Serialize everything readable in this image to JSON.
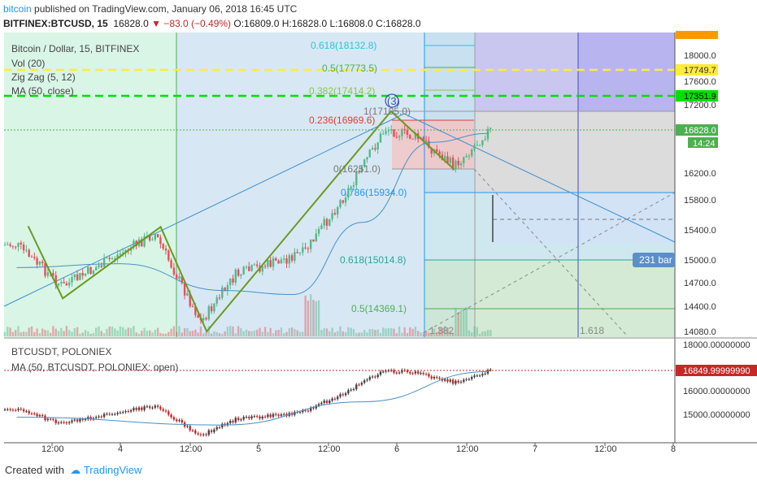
{
  "header": {
    "brand": "bitcoin",
    "published_text": " published on TradingView.com, January 06, 2018 16:45 UTC",
    "symbol": "BITFINEX:BTCUSD, 15",
    "last": "16828.0",
    "change": "▼ −83.0 (−0.49%)",
    "ohlc": "O:16809.0 H:16828.0 L:16808.0 C:16828.0"
  },
  "main_legend": {
    "title": "Bitcoin / Dollar, 15, BITFINEX",
    "vol": "Vol (20)",
    "zigzag": "Zig Zag (5, 12)",
    "ma": "MA (50, close)"
  },
  "lower_legend": {
    "title": "BTCUSDT, POLONIEX",
    "ma": "MA (50, BTCUSDT, POLONIEX: open)"
  },
  "footer": {
    "created_with": "Created with",
    "tradingview": "TradingView"
  },
  "colors": {
    "up": "#53b987",
    "down": "#eb4d5c",
    "zigzag": "#6a9a1f",
    "ma": "#4a90c8",
    "yellow_line": "#ffeb3b",
    "green_line": "#00e000"
  },
  "chart_data": [
    {
      "type": "line",
      "title": "Bitcoin / Dollar, 15, BITFINEX",
      "subtitle": "BITFINEX:BTCUSD, 15",
      "x_ticks": [
        "12:00",
        "4",
        "12:00",
        "5",
        "12:00",
        "6",
        "12:00",
        "7",
        "12:00",
        "8"
      ],
      "y_ticks": [
        18000,
        17600,
        17200,
        16200,
        15800,
        15400,
        15000,
        14700,
        14400,
        14080
      ],
      "ylim": [
        14000,
        18400
      ],
      "series": [
        {
          "name": "Zig Zag (5, 12)",
          "x": [
            "Jan 3 08:00",
            "Jan 3 14:00",
            "Jan 4 07:00",
            "Jan 4 15:00",
            "Jan 5 23:00",
            "Jan 6 10:00"
          ],
          "values": [
            15450,
            14500,
            15440,
            14080,
            17105,
            16251
          ]
        },
        {
          "name": "MA (50, close)",
          "x": [
            "Jan 3 06:00",
            "Jan 4 00:00",
            "Jan 4 18:00",
            "Jan 5 06:00",
            "Jan 5 18:00",
            "Jan 6 06:00",
            "Jan 6 16:00"
          ],
          "values": [
            14900,
            14950,
            14600,
            14550,
            15500,
            16650,
            16780
          ]
        },
        {
          "name": "BTCUSD close",
          "x": [
            "Jan 3 06:00",
            "Jan 3 14:00",
            "Jan 4 06:00",
            "Jan 4 14:00",
            "Jan 4 20:00",
            "Jan 5 08:00",
            "Jan 5 16:00",
            "Jan 5 22:00",
            "Jan 6 04:00",
            "Jan 6 10:00",
            "Jan 6 16:00"
          ],
          "values": [
            15200,
            14650,
            15350,
            14200,
            14800,
            15100,
            16000,
            16850,
            16700,
            16300,
            16828
          ]
        }
      ],
      "fib_retracement": [
        {
          "label": "1(17105.0)",
          "value": 17105.0
        },
        {
          "label": "0.236(16969.6)",
          "value": 16969.6
        },
        {
          "label": "0(16251.0)",
          "value": 16251.0
        }
      ],
      "fib_extension": [
        {
          "label": "0.618(18132.8)",
          "value": 18132.8
        },
        {
          "label": "0.5(17773.5)",
          "value": 17773.5
        },
        {
          "label": "0.382(17414.2)",
          "value": 17414.2
        },
        {
          "label": "0.786(15934.0)",
          "value": 15934.0
        },
        {
          "label": "0.618(15014.8)",
          "value": 15014.8
        },
        {
          "label": "0.5(14369.1)",
          "value": 14369.1
        }
      ],
      "price_tags": [
        {
          "label": "17749.7",
          "value": 17749.7,
          "color": "#ffeb3b"
        },
        {
          "label": "17351.9",
          "value": 17351.9,
          "color": "#00e000"
        },
        {
          "label": "16828.0",
          "value": 16828.0,
          "color": "#4caf50"
        },
        {
          "label": "14:24",
          "value": 16740,
          "color": "#4caf50"
        }
      ],
      "annotations": [
        "(3)",
        "231 bar",
        "1.382",
        "1.618"
      ]
    },
    {
      "type": "line",
      "title": "BTCUSDT, POLONIEX",
      "y_ticks": [
        "18000.00000000",
        "16000.00000000",
        "15000.00000000"
      ],
      "ylim": [
        14000,
        18400
      ],
      "series": [
        {
          "name": "BTCUSDT",
          "x": [
            "Jan 3 06:00",
            "Jan 4 14:00",
            "Jan 5 08:00",
            "Jan 5 22:00",
            "Jan 6 16:00"
          ],
          "values": [
            15200,
            14200,
            15100,
            16850,
            16849.9999999
          ]
        },
        {
          "name": "MA (50, BTCUSDT, POLONIEX: open)",
          "x": [
            "Jan 3 06:00",
            "Jan 4 18:00",
            "Jan 5 18:00",
            "Jan 6 16:00"
          ],
          "values": [
            14900,
            14600,
            15500,
            16780
          ]
        }
      ],
      "price_tags": [
        {
          "label": "16849.99999990",
          "value": 16849.9999999
        }
      ]
    }
  ]
}
